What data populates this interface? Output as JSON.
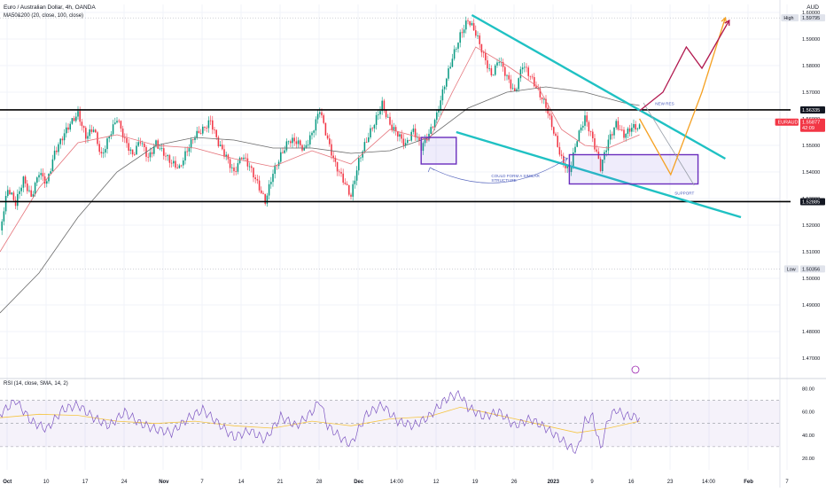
{
  "header": {
    "title": "Euro / Australian Dollar, 4h, OANDA",
    "ma_legend": "MA50&200 (20, close, 100, close)",
    "rsi_legend": "RSI (14, close, SMA, 14, 2)",
    "currency": "AUD"
  },
  "colors": {
    "resistance_line": "#000000",
    "channel": "#1fc1c3",
    "box": "#6a2dbd",
    "path_orange": "#f5a123",
    "path_red": "#b2194f",
    "ma_fast": "#e5737a",
    "ma_slow": "#6b6b6b",
    "rsi_line": "#7e57c2",
    "rsi_signal": "#f5c542",
    "price_badge": "#f23645"
  },
  "chart_data": [
    {
      "type": "candlestick",
      "title": "Euro / Australian Dollar, 4h, OANDA",
      "ylim": [
        1.463,
        1.603
      ],
      "y_ticks": [
        "1.60000",
        "1.59000",
        "1.58000",
        "1.57000",
        "1.56000",
        "1.55000",
        "1.54000",
        "1.53000",
        "1.52000",
        "1.51000",
        "1.50000",
        "1.49000",
        "1.48000",
        "1.47000"
      ],
      "x_ticks": [
        "Oct",
        "10",
        "17",
        "24",
        "Nov",
        "7",
        "14",
        "21",
        "28",
        "Dec",
        "14:00",
        "12",
        "19",
        "26",
        "2023",
        "9",
        "16",
        "23",
        "14:00",
        "Feb",
        "7"
      ],
      "price_labels": [
        {
          "tag": "High",
          "value": "1.59795"
        },
        {
          "tag": "",
          "value": "1.56335"
        },
        {
          "tag": "EURAUD",
          "value": "1.55877",
          "sub": "42:09"
        },
        {
          "tag": "",
          "value": "1.52885"
        },
        {
          "tag": "Low",
          "value": "1.50356"
        }
      ],
      "price_path": [
        [
          0,
          1.518
        ],
        [
          2,
          1.532
        ],
        [
          4,
          1.526
        ],
        [
          6,
          1.536
        ],
        [
          8,
          1.531
        ],
        [
          10,
          1.542
        ],
        [
          12,
          1.538
        ],
        [
          14,
          1.548
        ],
        [
          16,
          1.552
        ],
        [
          18,
          1.556
        ],
        [
          20,
          1.56
        ],
        [
          22,
          1.553
        ],
        [
          24,
          1.558
        ],
        [
          26,
          1.548
        ],
        [
          28,
          1.555
        ],
        [
          30,
          1.56
        ],
        [
          32,
          1.55
        ],
        [
          34,
          1.544
        ],
        [
          36,
          1.551
        ],
        [
          38,
          1.546
        ],
        [
          40,
          1.553
        ],
        [
          42,
          1.549
        ],
        [
          44,
          1.544
        ],
        [
          46,
          1.54
        ],
        [
          48,
          1.546
        ],
        [
          50,
          1.552
        ],
        [
          52,
          1.556
        ],
        [
          54,
          1.561
        ],
        [
          56,
          1.553
        ],
        [
          58,
          1.547
        ],
        [
          60,
          1.539
        ],
        [
          62,
          1.544
        ],
        [
          64,
          1.54
        ],
        [
          66,
          1.535
        ],
        [
          68,
          1.53
        ],
        [
          70,
          1.542
        ],
        [
          72,
          1.548
        ],
        [
          74,
          1.552
        ],
        [
          76,
          1.55
        ],
        [
          78,
          1.546
        ],
        [
          80,
          1.553
        ],
        [
          82,
          1.564
        ],
        [
          84,
          1.554
        ],
        [
          86,
          1.545
        ],
        [
          88,
          1.538
        ],
        [
          90,
          1.53
        ],
        [
          92,
          1.542
        ],
        [
          94,
          1.55
        ],
        [
          96,
          1.558
        ],
        [
          98,
          1.567
        ],
        [
          100,
          1.56
        ],
        [
          102,
          1.556
        ],
        [
          104,
          1.55
        ],
        [
          106,
          1.554
        ],
        [
          108,
          1.547
        ],
        [
          110,
          1.553
        ],
        [
          112,
          1.562
        ],
        [
          114,
          1.575
        ],
        [
          116,
          1.585
        ],
        [
          118,
          1.592
        ],
        [
          120,
          1.596
        ],
        [
          122,
          1.59
        ],
        [
          124,
          1.582
        ],
        [
          126,
          1.576
        ],
        [
          128,
          1.584
        ],
        [
          130,
          1.578
        ],
        [
          132,
          1.571
        ],
        [
          134,
          1.58
        ],
        [
          136,
          1.574
        ],
        [
          138,
          1.568
        ],
        [
          140,
          1.564
        ],
        [
          142,
          1.556
        ],
        [
          144,
          1.547
        ],
        [
          146,
          1.542
        ],
        [
          148,
          1.553
        ],
        [
          150,
          1.559
        ],
        [
          152,
          1.55
        ],
        [
          154,
          1.54
        ],
        [
          156,
          1.552
        ],
        [
          158,
          1.56
        ],
        [
          160,
          1.556
        ],
        [
          162,
          1.558
        ],
        [
          164,
          1.556
        ]
      ],
      "ma_fast": [
        [
          0,
          1.51
        ],
        [
          10,
          1.534
        ],
        [
          20,
          1.551
        ],
        [
          30,
          1.554
        ],
        [
          40,
          1.55
        ],
        [
          50,
          1.549
        ],
        [
          60,
          1.545
        ],
        [
          70,
          1.542
        ],
        [
          80,
          1.548
        ],
        [
          90,
          1.543
        ],
        [
          100,
          1.556
        ],
        [
          110,
          1.552
        ],
        [
          116,
          1.57
        ],
        [
          122,
          1.587
        ],
        [
          130,
          1.58
        ],
        [
          138,
          1.572
        ],
        [
          144,
          1.556
        ],
        [
          150,
          1.55
        ],
        [
          156,
          1.549
        ],
        [
          164,
          1.554
        ]
      ],
      "ma_slow": [
        [
          0,
          1.487
        ],
        [
          10,
          1.502
        ],
        [
          20,
          1.523
        ],
        [
          30,
          1.54
        ],
        [
          40,
          1.55
        ],
        [
          50,
          1.553
        ],
        [
          60,
          1.552
        ],
        [
          70,
          1.549
        ],
        [
          80,
          1.549
        ],
        [
          90,
          1.547
        ],
        [
          100,
          1.548
        ],
        [
          110,
          1.553
        ],
        [
          120,
          1.564
        ],
        [
          130,
          1.57
        ],
        [
          140,
          1.572
        ],
        [
          150,
          1.57
        ],
        [
          160,
          1.566
        ],
        [
          164,
          1.565
        ]
      ],
      "levels": [
        1.56335,
        1.52885
      ],
      "channel_upper": [
        [
          121,
          1.599
        ],
        [
          186,
          1.545
        ]
      ],
      "channel_lower": [
        [
          117,
          1.555
        ],
        [
          190,
          1.523
        ]
      ],
      "boxes": [
        {
          "x": [
            108,
            117
          ],
          "y": [
            1.543,
            1.553
          ]
        },
        {
          "x": [
            146,
            179
          ],
          "y": [
            1.5355,
            1.5465
          ]
        }
      ],
      "projection_orange": [
        [
          164,
          1.56
        ],
        [
          172,
          1.539
        ],
        [
          180,
          1.57
        ],
        [
          186,
          1.598
        ]
      ],
      "projection_red": [
        [
          164,
          1.563
        ],
        [
          170,
          1.57
        ],
        [
          176,
          1.587
        ],
        [
          180,
          1.579
        ],
        [
          187,
          1.597
        ]
      ],
      "projection_grey": [
        [
          165,
          1.566
        ],
        [
          173,
          1.547
        ],
        [
          178,
          1.535
        ]
      ],
      "annotations": [
        {
          "text": "NEW RES",
          "x": 168,
          "y": 1.5652
        },
        {
          "text": "COULD FORM A SIMILAR STRUCTURE",
          "x": 126,
          "y": 1.538
        },
        {
          "text": "SUPPORT",
          "x": 173,
          "y": 1.5315
        }
      ]
    },
    {
      "type": "line",
      "title": "RSI (14, close, SMA, 14, 2)",
      "ylim": [
        10,
        85
      ],
      "y_ticks": [
        "80.00",
        "60.00",
        "40.00",
        "20.00"
      ],
      "upper_band": 70,
      "lower_band": 30,
      "rsi": [
        [
          0,
          58
        ],
        [
          4,
          70
        ],
        [
          8,
          52
        ],
        [
          12,
          45
        ],
        [
          16,
          62
        ],
        [
          20,
          66
        ],
        [
          24,
          55
        ],
        [
          28,
          48
        ],
        [
          32,
          60
        ],
        [
          36,
          50
        ],
        [
          40,
          45
        ],
        [
          44,
          42
        ],
        [
          48,
          54
        ],
        [
          52,
          62
        ],
        [
          56,
          50
        ],
        [
          60,
          38
        ],
        [
          64,
          44
        ],
        [
          68,
          36
        ],
        [
          72,
          56
        ],
        [
          76,
          48
        ],
        [
          80,
          60
        ],
        [
          82,
          70
        ],
        [
          84,
          48
        ],
        [
          88,
          36
        ],
        [
          90,
          32
        ],
        [
          94,
          58
        ],
        [
          98,
          66
        ],
        [
          102,
          52
        ],
        [
          106,
          48
        ],
        [
          110,
          56
        ],
        [
          114,
          70
        ],
        [
          116,
          74
        ],
        [
          118,
          75
        ],
        [
          120,
          64
        ],
        [
          124,
          56
        ],
        [
          128,
          60
        ],
        [
          132,
          48
        ],
        [
          136,
          54
        ],
        [
          140,
          46
        ],
        [
          144,
          36
        ],
        [
          146,
          30
        ],
        [
          148,
          26
        ],
        [
          150,
          52
        ],
        [
          152,
          56
        ],
        [
          154,
          28
        ],
        [
          156,
          54
        ],
        [
          158,
          62
        ],
        [
          160,
          57
        ],
        [
          164,
          55
        ]
      ],
      "signal": [
        [
          0,
          55
        ],
        [
          10,
          58
        ],
        [
          20,
          57
        ],
        [
          30,
          52
        ],
        [
          40,
          50
        ],
        [
          50,
          52
        ],
        [
          60,
          48
        ],
        [
          70,
          46
        ],
        [
          80,
          52
        ],
        [
          90,
          48
        ],
        [
          100,
          54
        ],
        [
          110,
          56
        ],
        [
          118,
          64
        ],
        [
          124,
          60
        ],
        [
          132,
          54
        ],
        [
          140,
          48
        ],
        [
          148,
          42
        ],
        [
          156,
          46
        ],
        [
          164,
          52
        ]
      ]
    }
  ]
}
